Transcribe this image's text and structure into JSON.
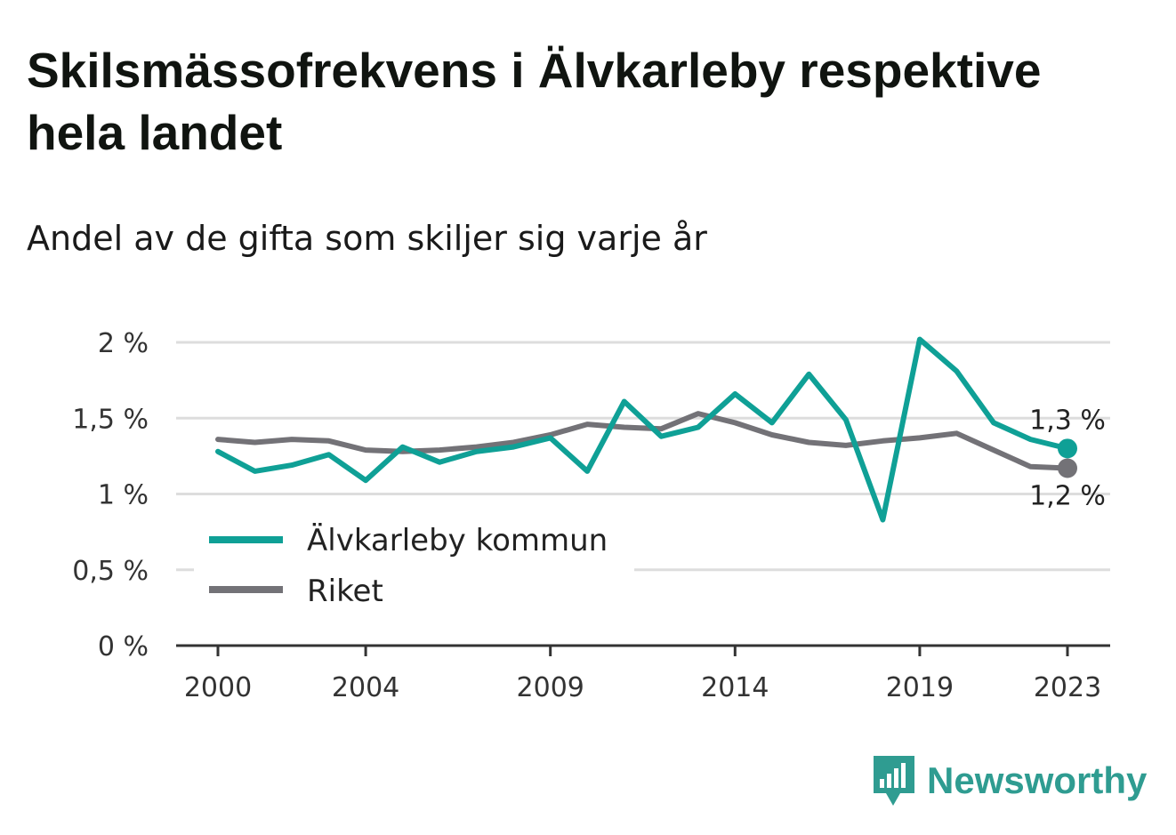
{
  "title": "Skilsmässofrekvens i Älvkarleby respektive hela landet",
  "subtitle": "Andel av de gifta som skiljer sig varje år",
  "brand": "Newsworthy",
  "colors": {
    "kommun": "#0fa096",
    "riket": "#737277",
    "grid": "#dddddd",
    "brand": "#2f9c91"
  },
  "chart_data": {
    "type": "line",
    "x": [
      2000,
      2001,
      2002,
      2003,
      2004,
      2005,
      2006,
      2007,
      2008,
      2009,
      2010,
      2011,
      2012,
      2013,
      2014,
      2015,
      2016,
      2017,
      2018,
      2019,
      2020,
      2021,
      2022,
      2023
    ],
    "xticks": [
      2000,
      2004,
      2009,
      2014,
      2019,
      2023
    ],
    "xtick_labels": [
      "2000",
      "2004",
      "2009",
      "2014",
      "2019",
      "2023"
    ],
    "yticks": [
      0,
      0.5,
      1,
      1.5,
      2
    ],
    "ytick_labels": [
      "0 %",
      "0,5 %",
      "1 %",
      "1,5 %",
      "2 %"
    ],
    "ylim": [
      0,
      2
    ],
    "grid": true,
    "legend_position": "bottom-left",
    "series": [
      {
        "name": "Älvkarleby kommun",
        "color": "#0fa096",
        "values": [
          1.28,
          1.15,
          1.19,
          1.26,
          1.09,
          1.31,
          1.21,
          1.28,
          1.31,
          1.37,
          1.15,
          1.61,
          1.38,
          1.44,
          1.66,
          1.47,
          1.79,
          1.49,
          0.83,
          2.02,
          1.81,
          1.47,
          1.36,
          1.3
        ],
        "end_label": "1,3 %"
      },
      {
        "name": "Riket",
        "color": "#737277",
        "values": [
          1.36,
          1.34,
          1.36,
          1.35,
          1.29,
          1.28,
          1.29,
          1.31,
          1.34,
          1.39,
          1.46,
          1.44,
          1.43,
          1.53,
          1.47,
          1.39,
          1.34,
          1.32,
          1.35,
          1.37,
          1.4,
          1.29,
          1.18,
          1.17
        ],
        "end_label": "1,2 %"
      }
    ]
  }
}
